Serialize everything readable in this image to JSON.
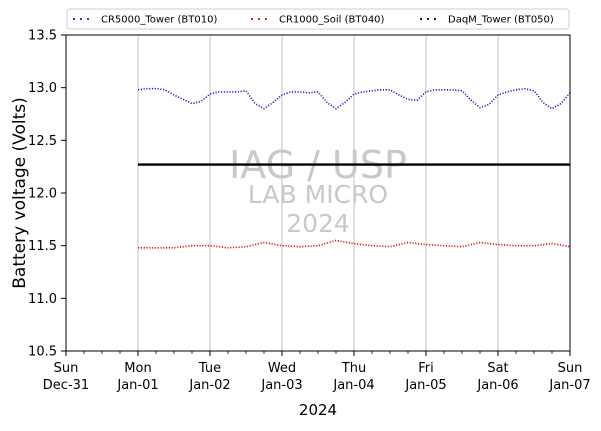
{
  "chart_data": {
    "type": "line",
    "xlabel": "2024",
    "ylabel": "Battery voltage (Volts)",
    "ylim": [
      10.5,
      13.5
    ],
    "xlim": [
      "2023-12-31",
      "2024-01-07"
    ],
    "yticks": [
      "10.5",
      "11.0",
      "11.5",
      "12.0",
      "12.5",
      "13.0",
      "13.5"
    ],
    "xticks": [
      {
        "day": "Sun",
        "date": "Dec-31"
      },
      {
        "day": "Mon",
        "date": "Jan-01"
      },
      {
        "day": "Tue",
        "date": "Jan-02"
      },
      {
        "day": "Wed",
        "date": "Jan-03"
      },
      {
        "day": "Thu",
        "date": "Jan-04"
      },
      {
        "day": "Fri",
        "date": "Jan-05"
      },
      {
        "day": "Sat",
        "date": "Jan-06"
      },
      {
        "day": "Sun",
        "date": "Jan-07"
      }
    ],
    "grid": "vertical",
    "legend": "top",
    "watermark": [
      "IAG / USP",
      "LAB MICRO",
      "2024"
    ],
    "series": [
      {
        "name": "CR5000_Tower (BT010)",
        "color": "#1f1fd8",
        "x": [
          "2024-01-01T00:00",
          "2024-01-01T03:00",
          "2024-01-01T06:00",
          "2024-01-01T09:00",
          "2024-01-01T12:00",
          "2024-01-01T15:00",
          "2024-01-01T18:00",
          "2024-01-01T21:00",
          "2024-01-02T00:00",
          "2024-01-02T03:00",
          "2024-01-02T06:00",
          "2024-01-02T09:00",
          "2024-01-02T12:00",
          "2024-01-02T15:00",
          "2024-01-02T18:00",
          "2024-01-02T21:00",
          "2024-01-03T00:00",
          "2024-01-03T03:00",
          "2024-01-03T06:00",
          "2024-01-03T09:00",
          "2024-01-03T12:00",
          "2024-01-03T15:00",
          "2024-01-03T18:00",
          "2024-01-03T21:00",
          "2024-01-04T00:00",
          "2024-01-04T03:00",
          "2024-01-04T06:00",
          "2024-01-04T09:00",
          "2024-01-04T12:00",
          "2024-01-04T15:00",
          "2024-01-04T18:00",
          "2024-01-04T21:00",
          "2024-01-05T00:00",
          "2024-01-05T03:00",
          "2024-01-05T06:00",
          "2024-01-05T09:00",
          "2024-01-05T12:00",
          "2024-01-05T15:00",
          "2024-01-05T18:00",
          "2024-01-05T21:00",
          "2024-01-06T00:00",
          "2024-01-06T03:00",
          "2024-01-06T06:00",
          "2024-01-06T09:00",
          "2024-01-06T12:00",
          "2024-01-06T15:00",
          "2024-01-06T18:00",
          "2024-01-06T21:00",
          "2024-01-07T00:00"
        ],
        "y": [
          12.98,
          12.99,
          12.99,
          12.98,
          12.93,
          12.89,
          12.85,
          12.87,
          12.94,
          12.96,
          12.96,
          12.96,
          12.97,
          12.85,
          12.8,
          12.86,
          12.93,
          12.96,
          12.96,
          12.95,
          12.96,
          12.86,
          12.8,
          12.86,
          12.94,
          12.96,
          12.97,
          12.98,
          12.98,
          12.93,
          12.89,
          12.88,
          12.96,
          12.98,
          12.98,
          12.98,
          12.97,
          12.88,
          12.81,
          12.84,
          12.93,
          12.96,
          12.98,
          12.99,
          12.97,
          12.86,
          12.8,
          12.85,
          12.95
        ]
      },
      {
        "name": "CR1000_Soil (BT040)",
        "color": "#e01010",
        "x": [
          "2024-01-01T00:00",
          "2024-01-01T06:00",
          "2024-01-01T12:00",
          "2024-01-01T18:00",
          "2024-01-02T00:00",
          "2024-01-02T06:00",
          "2024-01-02T12:00",
          "2024-01-02T18:00",
          "2024-01-03T00:00",
          "2024-01-03T06:00",
          "2024-01-03T12:00",
          "2024-01-03T18:00",
          "2024-01-04T00:00",
          "2024-01-04T06:00",
          "2024-01-04T12:00",
          "2024-01-04T18:00",
          "2024-01-05T00:00",
          "2024-01-05T06:00",
          "2024-01-05T12:00",
          "2024-01-05T18:00",
          "2024-01-06T00:00",
          "2024-01-06T06:00",
          "2024-01-06T12:00",
          "2024-01-06T18:00",
          "2024-01-07T00:00"
        ],
        "y": [
          11.48,
          11.48,
          11.48,
          11.5,
          11.5,
          11.48,
          11.49,
          11.53,
          11.5,
          11.49,
          11.5,
          11.55,
          11.52,
          11.5,
          11.49,
          11.53,
          11.51,
          11.5,
          11.49,
          11.53,
          11.51,
          11.5,
          11.5,
          11.52,
          11.49
        ]
      },
      {
        "name": "DaqM_Tower (BT050)",
        "color": "#000000",
        "x": [
          "2024-01-01T00:00",
          "2024-01-07T00:00"
        ],
        "y": [
          12.27,
          12.27
        ]
      }
    ]
  }
}
